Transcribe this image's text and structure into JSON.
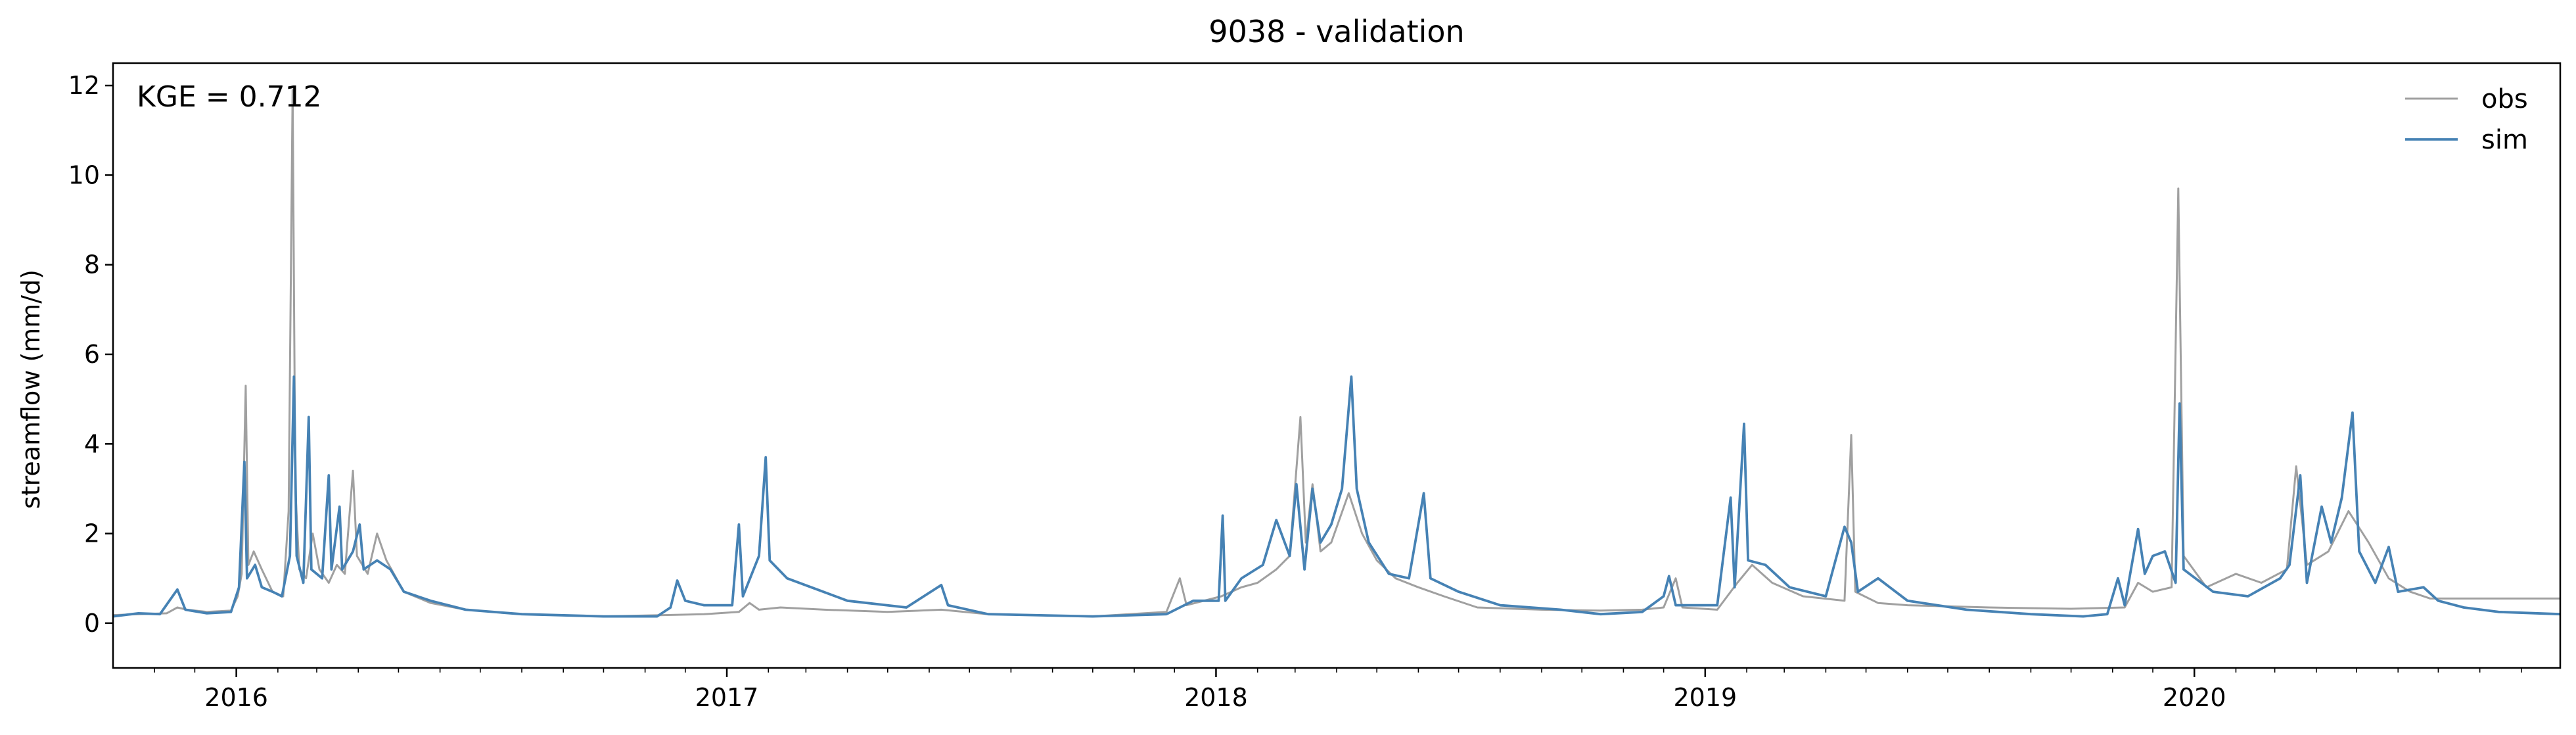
{
  "chart_data": {
    "type": "line",
    "title": "9038 - validation",
    "xlabel": "",
    "ylabel": "streamflow (mm/d)",
    "x_start": "2015-10-01",
    "x_end": "2020-09-30",
    "xlim": [
      "2015-10-01",
      "2020-09-30"
    ],
    "ylim": [
      -1,
      12.5
    ],
    "yticks": [
      0,
      2,
      4,
      6,
      8,
      10,
      12
    ],
    "ytick_labels": [
      "0",
      "2",
      "4",
      "6",
      "8",
      "10",
      "12"
    ],
    "xticks": [
      "2016-01-01",
      "2017-01-01",
      "2018-01-01",
      "2019-01-01",
      "2020-01-01"
    ],
    "xtick_labels": [
      "2016",
      "2017",
      "2018",
      "2019",
      "2020"
    ],
    "grid": false,
    "legend_position": "top-right",
    "annotation": "KGE = 0.712",
    "series": [
      {
        "name": "obs",
        "color": "#a0a0a0",
        "points": [
          [
            "2015-10-01",
            0.18
          ],
          [
            "2015-10-20",
            0.2
          ],
          [
            "2015-11-10",
            0.22
          ],
          [
            "2015-11-18",
            0.35
          ],
          [
            "2015-11-25",
            0.3
          ],
          [
            "2015-12-10",
            0.25
          ],
          [
            "2015-12-28",
            0.28
          ],
          [
            "2016-01-02",
            0.6
          ],
          [
            "2016-01-05",
            1.1
          ],
          [
            "2016-01-08",
            5.3
          ],
          [
            "2016-01-10",
            1.3
          ],
          [
            "2016-01-14",
            1.6
          ],
          [
            "2016-01-20",
            1.2
          ],
          [
            "2016-01-28",
            0.7
          ],
          [
            "2016-02-05",
            0.6
          ],
          [
            "2016-02-09",
            2.5
          ],
          [
            "2016-02-12",
            11.9
          ],
          [
            "2016-02-14",
            3.0
          ],
          [
            "2016-02-17",
            1.2
          ],
          [
            "2016-02-22",
            1.0
          ],
          [
            "2016-02-27",
            2.0
          ],
          [
            "2016-03-03",
            1.2
          ],
          [
            "2016-03-10",
            0.9
          ],
          [
            "2016-03-16",
            1.3
          ],
          [
            "2016-03-22",
            1.1
          ],
          [
            "2016-03-28",
            3.4
          ],
          [
            "2016-03-31",
            1.5
          ],
          [
            "2016-04-08",
            1.1
          ],
          [
            "2016-04-15",
            2.0
          ],
          [
            "2016-04-22",
            1.4
          ],
          [
            "2016-05-05",
            0.7
          ],
          [
            "2016-05-25",
            0.45
          ],
          [
            "2016-06-20",
            0.3
          ],
          [
            "2016-08-01",
            0.2
          ],
          [
            "2016-10-01",
            0.15
          ],
          [
            "2016-11-15",
            0.18
          ],
          [
            "2016-12-15",
            0.2
          ],
          [
            "2017-01-10",
            0.25
          ],
          [
            "2017-01-18",
            0.45
          ],
          [
            "2017-01-25",
            0.3
          ],
          [
            "2017-02-10",
            0.35
          ],
          [
            "2017-03-15",
            0.3
          ],
          [
            "2017-05-01",
            0.25
          ],
          [
            "2017-06-10",
            0.3
          ],
          [
            "2017-07-15",
            0.2
          ],
          [
            "2017-10-01",
            0.15
          ],
          [
            "2017-11-25",
            0.25
          ],
          [
            "2017-12-05",
            1.0
          ],
          [
            "2017-12-10",
            0.4
          ],
          [
            "2018-01-05",
            0.6
          ],
          [
            "2018-01-20",
            0.8
          ],
          [
            "2018-02-01",
            0.9
          ],
          [
            "2018-02-15",
            1.2
          ],
          [
            "2018-02-25",
            1.5
          ],
          [
            "2018-03-05",
            4.6
          ],
          [
            "2018-03-09",
            1.8
          ],
          [
            "2018-03-14",
            3.1
          ],
          [
            "2018-03-20",
            1.6
          ],
          [
            "2018-03-28",
            1.8
          ],
          [
            "2018-04-10",
            2.9
          ],
          [
            "2018-04-20",
            2.0
          ],
          [
            "2018-05-01",
            1.4
          ],
          [
            "2018-05-15",
            1.0
          ],
          [
            "2018-06-01",
            0.8
          ],
          [
            "2018-06-20",
            0.6
          ],
          [
            "2018-07-15",
            0.35
          ],
          [
            "2018-09-01",
            0.3
          ],
          [
            "2018-10-15",
            0.28
          ],
          [
            "2018-11-15",
            0.3
          ],
          [
            "2018-12-01",
            0.35
          ],
          [
            "2018-12-10",
            1.0
          ],
          [
            "2018-12-15",
            0.35
          ],
          [
            "2019-01-10",
            0.3
          ],
          [
            "2019-01-25",
            0.9
          ],
          [
            "2019-02-05",
            1.3
          ],
          [
            "2019-02-20",
            0.9
          ],
          [
            "2019-03-15",
            0.6
          ],
          [
            "2019-04-15",
            0.5
          ],
          [
            "2019-04-20",
            4.2
          ],
          [
            "2019-04-23",
            0.7
          ],
          [
            "2019-05-10",
            0.45
          ],
          [
            "2019-06-01",
            0.4
          ],
          [
            "2019-08-01",
            0.35
          ],
          [
            "2019-10-01",
            0.32
          ],
          [
            "2019-11-10",
            0.35
          ],
          [
            "2019-11-20",
            0.9
          ],
          [
            "2019-12-01",
            0.7
          ],
          [
            "2019-12-15",
            0.8
          ],
          [
            "2019-12-20",
            9.7
          ],
          [
            "2019-12-24",
            1.5
          ],
          [
            "2020-01-10",
            0.8
          ],
          [
            "2020-02-01",
            1.1
          ],
          [
            "2020-02-20",
            0.9
          ],
          [
            "2020-03-10",
            1.2
          ],
          [
            "2020-03-17",
            3.5
          ],
          [
            "2020-03-25",
            1.3
          ],
          [
            "2020-04-10",
            1.6
          ],
          [
            "2020-04-25",
            2.5
          ],
          [
            "2020-05-10",
            1.8
          ],
          [
            "2020-05-25",
            1.0
          ],
          [
            "2020-06-10",
            0.7
          ],
          [
            "2020-06-25",
            0.55
          ],
          [
            "2020-07-15",
            0.55
          ],
          [
            "2020-08-15",
            0.55
          ],
          [
            "2020-09-30",
            0.55
          ]
        ]
      },
      {
        "name": "sim",
        "color": "#4682b4",
        "points": [
          [
            "2015-10-01",
            0.15
          ],
          [
            "2015-10-20",
            0.22
          ],
          [
            "2015-11-05",
            0.2
          ],
          [
            "2015-11-18",
            0.75
          ],
          [
            "2015-11-24",
            0.3
          ],
          [
            "2015-12-10",
            0.22
          ],
          [
            "2015-12-28",
            0.25
          ],
          [
            "2016-01-03",
            0.8
          ],
          [
            "2016-01-07",
            3.6
          ],
          [
            "2016-01-09",
            1.0
          ],
          [
            "2016-01-15",
            1.3
          ],
          [
            "2016-01-20",
            0.8
          ],
          [
            "2016-01-28",
            0.7
          ],
          [
            "2016-02-04",
            0.6
          ],
          [
            "2016-02-10",
            1.5
          ],
          [
            "2016-02-13",
            5.5
          ],
          [
            "2016-02-15",
            1.5
          ],
          [
            "2016-02-20",
            0.9
          ],
          [
            "2016-02-24",
            4.6
          ],
          [
            "2016-02-26",
            1.2
          ],
          [
            "2016-03-05",
            1.0
          ],
          [
            "2016-03-10",
            3.3
          ],
          [
            "2016-03-12",
            1.2
          ],
          [
            "2016-03-18",
            2.6
          ],
          [
            "2016-03-20",
            1.2
          ],
          [
            "2016-03-28",
            1.6
          ],
          [
            "2016-04-02",
            2.2
          ],
          [
            "2016-04-05",
            1.2
          ],
          [
            "2016-04-15",
            1.4
          ],
          [
            "2016-04-25",
            1.2
          ],
          [
            "2016-05-05",
            0.7
          ],
          [
            "2016-05-25",
            0.5
          ],
          [
            "2016-06-20",
            0.3
          ],
          [
            "2016-08-01",
            0.2
          ],
          [
            "2016-10-01",
            0.15
          ],
          [
            "2016-11-10",
            0.15
          ],
          [
            "2016-11-20",
            0.35
          ],
          [
            "2016-11-25",
            0.95
          ],
          [
            "2016-12-01",
            0.5
          ],
          [
            "2016-12-15",
            0.4
          ],
          [
            "2017-01-05",
            0.4
          ],
          [
            "2017-01-10",
            2.2
          ],
          [
            "2017-01-13",
            0.6
          ],
          [
            "2017-01-25",
            1.5
          ],
          [
            "2017-01-30",
            3.7
          ],
          [
            "2017-02-02",
            1.4
          ],
          [
            "2017-02-15",
            1.0
          ],
          [
            "2017-03-05",
            0.8
          ],
          [
            "2017-04-01",
            0.5
          ],
          [
            "2017-05-15",
            0.35
          ],
          [
            "2017-06-10",
            0.85
          ],
          [
            "2017-06-15",
            0.4
          ],
          [
            "2017-07-15",
            0.2
          ],
          [
            "2017-10-01",
            0.15
          ],
          [
            "2017-11-25",
            0.2
          ],
          [
            "2017-12-15",
            0.5
          ],
          [
            "2018-01-03",
            0.5
          ],
          [
            "2018-01-06",
            2.4
          ],
          [
            "2018-01-08",
            0.5
          ],
          [
            "2018-01-20",
            1.0
          ],
          [
            "2018-02-05",
            1.3
          ],
          [
            "2018-02-15",
            2.3
          ],
          [
            "2018-02-25",
            1.5
          ],
          [
            "2018-03-02",
            3.1
          ],
          [
            "2018-03-08",
            1.2
          ],
          [
            "2018-03-14",
            3.0
          ],
          [
            "2018-03-20",
            1.8
          ],
          [
            "2018-03-28",
            2.2
          ],
          [
            "2018-04-05",
            3.0
          ],
          [
            "2018-04-12",
            5.5
          ],
          [
            "2018-04-16",
            3.0
          ],
          [
            "2018-04-25",
            1.8
          ],
          [
            "2018-05-10",
            1.1
          ],
          [
            "2018-05-25",
            1.0
          ],
          [
            "2018-06-05",
            2.9
          ],
          [
            "2018-06-10",
            1.0
          ],
          [
            "2018-07-01",
            0.7
          ],
          [
            "2018-08-01",
            0.4
          ],
          [
            "2018-09-15",
            0.3
          ],
          [
            "2018-10-15",
            0.2
          ],
          [
            "2018-11-15",
            0.25
          ],
          [
            "2018-12-01",
            0.6
          ],
          [
            "2018-12-05",
            1.05
          ],
          [
            "2018-12-10",
            0.4
          ],
          [
            "2019-01-10",
            0.4
          ],
          [
            "2019-01-20",
            2.8
          ],
          [
            "2019-01-23",
            0.8
          ],
          [
            "2019-01-30",
            4.45
          ],
          [
            "2019-02-02",
            1.4
          ],
          [
            "2019-02-15",
            1.3
          ],
          [
            "2019-03-05",
            0.8
          ],
          [
            "2019-04-01",
            0.6
          ],
          [
            "2019-04-15",
            2.15
          ],
          [
            "2019-04-20",
            1.8
          ],
          [
            "2019-04-25",
            0.7
          ],
          [
            "2019-05-10",
            1.0
          ],
          [
            "2019-06-01",
            0.5
          ],
          [
            "2019-07-15",
            0.3
          ],
          [
            "2019-09-01",
            0.2
          ],
          [
            "2019-10-10",
            0.15
          ],
          [
            "2019-10-28",
            0.2
          ],
          [
            "2019-11-05",
            1.0
          ],
          [
            "2019-11-10",
            0.4
          ],
          [
            "2019-11-20",
            2.1
          ],
          [
            "2019-11-25",
            1.1
          ],
          [
            "2019-12-01",
            1.5
          ],
          [
            "2019-12-10",
            1.6
          ],
          [
            "2019-12-18",
            0.9
          ],
          [
            "2019-12-21",
            4.9
          ],
          [
            "2019-12-24",
            1.2
          ],
          [
            "2020-01-15",
            0.7
          ],
          [
            "2020-02-10",
            0.6
          ],
          [
            "2020-03-05",
            1.0
          ],
          [
            "2020-03-12",
            1.3
          ],
          [
            "2020-03-20",
            3.3
          ],
          [
            "2020-03-25",
            0.9
          ],
          [
            "2020-04-05",
            2.6
          ],
          [
            "2020-04-12",
            1.8
          ],
          [
            "2020-04-20",
            2.8
          ],
          [
            "2020-04-28",
            4.7
          ],
          [
            "2020-05-03",
            1.6
          ],
          [
            "2020-05-15",
            0.9
          ],
          [
            "2020-05-25",
            1.7
          ],
          [
            "2020-06-01",
            0.7
          ],
          [
            "2020-06-20",
            0.8
          ],
          [
            "2020-07-01",
            0.5
          ],
          [
            "2020-07-20",
            0.35
          ],
          [
            "2020-08-15",
            0.25
          ],
          [
            "2020-09-30",
            0.2
          ]
        ]
      }
    ]
  }
}
